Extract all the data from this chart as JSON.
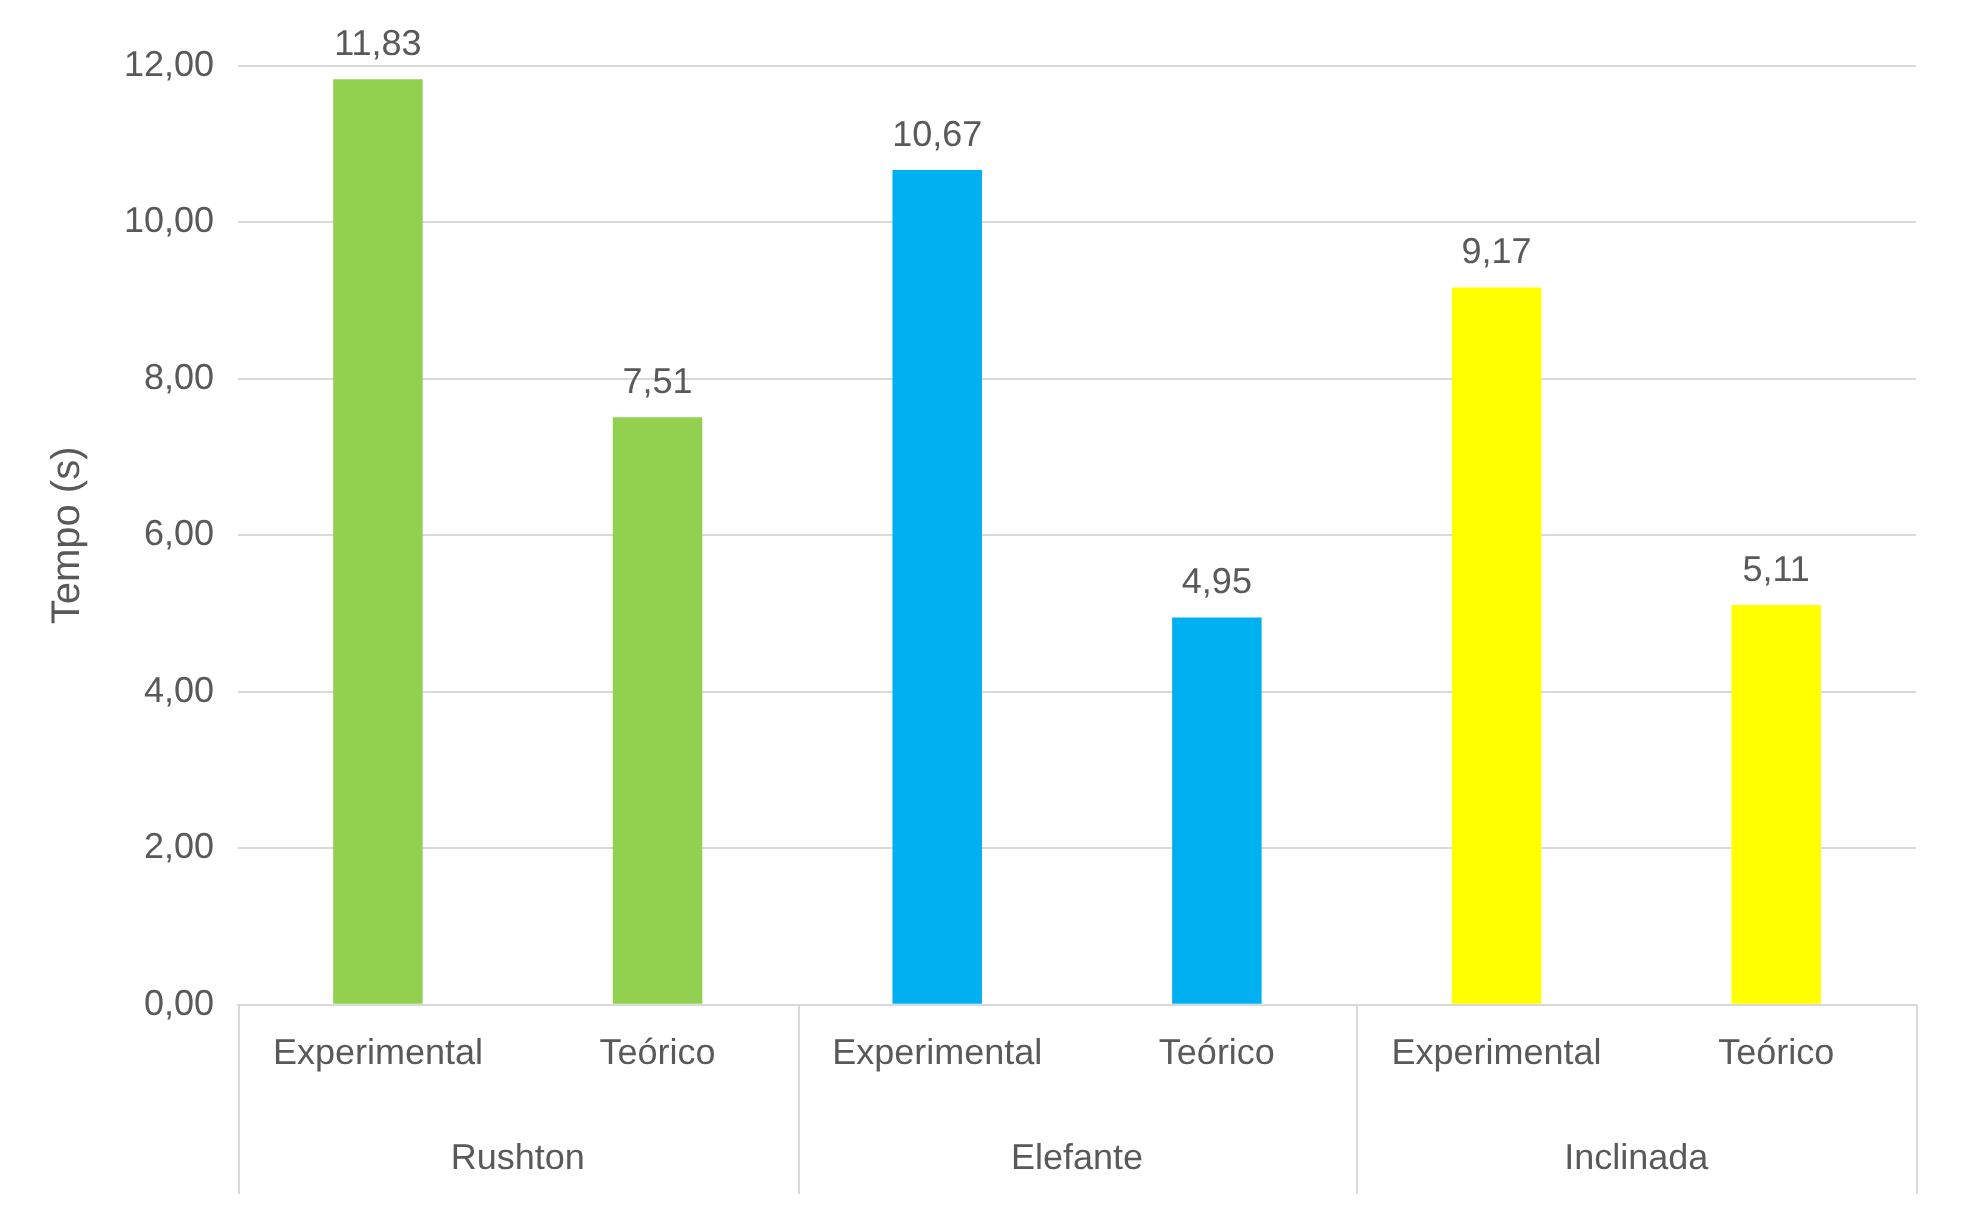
{
  "chart_data": {
    "type": "bar",
    "ylabel": "Tempo (s)",
    "categories": [
      "Experimental",
      "Teórico",
      "Experimental",
      "Teórico",
      "Experimental",
      "Teórico"
    ],
    "values": [
      11.83,
      7.51,
      10.67,
      4.95,
      9.17,
      5.11
    ],
    "colors": [
      "#92d050",
      "#92d050",
      "#00b0f0",
      "#00b0f0",
      "#ffff00",
      "#ffff00"
    ],
    "value_labels": [
      "11,83",
      "7,51",
      "10,67",
      "4,95",
      "9,17",
      "5,11"
    ],
    "annotations": [
      "Rushton",
      "Elefante",
      "Inclinada"
    ],
    "ylim": [
      0,
      12
    ],
    "yticks": [
      {
        "value": 0,
        "label": "0,00"
      },
      {
        "value": 2,
        "label": "2,00"
      },
      {
        "value": 4,
        "label": "4,00"
      },
      {
        "value": 6,
        "label": "6,00"
      },
      {
        "value": 8,
        "label": "8,00"
      },
      {
        "value": 10,
        "label": "10,00"
      },
      {
        "value": 12,
        "label": "12,00"
      }
    ],
    "grid": "y",
    "legend": false
  }
}
